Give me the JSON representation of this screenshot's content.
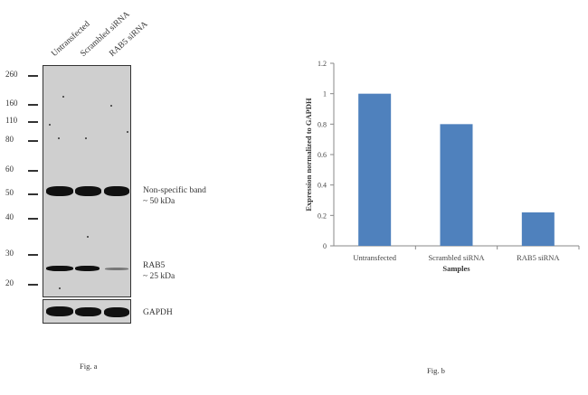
{
  "fig_a": {
    "caption": "Fig. a",
    "lanes": [
      "Untransfected",
      "Scrambled siRNA",
      "RAB5 siRNA"
    ],
    "markers": [
      "260",
      "160",
      "110",
      "80",
      "60",
      "50",
      "40",
      "30",
      "20"
    ],
    "band_labels": {
      "nonspecific": "Non-specific band",
      "nonspecific_size": "~ 50 kDa",
      "rab5": "RAB5",
      "rab5_size": "~ 25 kDa",
      "gapdh": "GAPDH"
    }
  },
  "fig_b": {
    "caption": "Fig. b"
  },
  "chart_data": {
    "type": "bar",
    "categories": [
      "Untransfected",
      "Scrambled siRNA",
      "RAB5 siRNA"
    ],
    "values": [
      1.0,
      0.8,
      0.22
    ],
    "xlabel": "Samples",
    "ylabel": "Expression  normalized to GAPDH",
    "ylim": [
      0,
      1.2
    ],
    "yticks": [
      "0",
      "0.2",
      "0.4",
      "0.6",
      "0.8",
      "1",
      "1.2"
    ],
    "bar_color": "#4f81bd",
    "grid": false
  }
}
